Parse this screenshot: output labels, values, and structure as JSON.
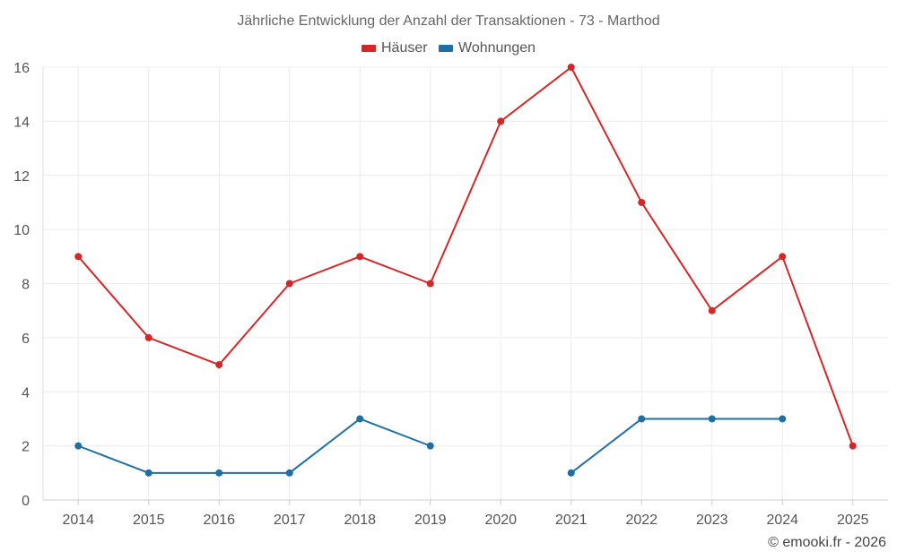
{
  "chart_data": {
    "type": "line",
    "title": "Jährliche Entwicklung der Anzahl der Transaktionen - 73 - Marthod",
    "xlabel": "",
    "ylabel": "",
    "categories": [
      "2014",
      "2015",
      "2016",
      "2017",
      "2018",
      "2019",
      "2020",
      "2021",
      "2022",
      "2023",
      "2024",
      "2025"
    ],
    "ylim": [
      0,
      16
    ],
    "yticks": [
      0,
      2,
      4,
      6,
      8,
      10,
      12,
      14,
      16
    ],
    "grid": true,
    "legend_position": "top-center",
    "series": [
      {
        "name": "Häuser",
        "color": "#d62728",
        "values": [
          9,
          6,
          5,
          8,
          9,
          8,
          14,
          16,
          11,
          7,
          9,
          2
        ]
      },
      {
        "name": "Wohnungen",
        "color": "#1f6fa5",
        "values": [
          2,
          1,
          1,
          1,
          3,
          2,
          null,
          1,
          3,
          3,
          3,
          null
        ]
      }
    ]
  },
  "credit": "© emooki.fr - 2026"
}
